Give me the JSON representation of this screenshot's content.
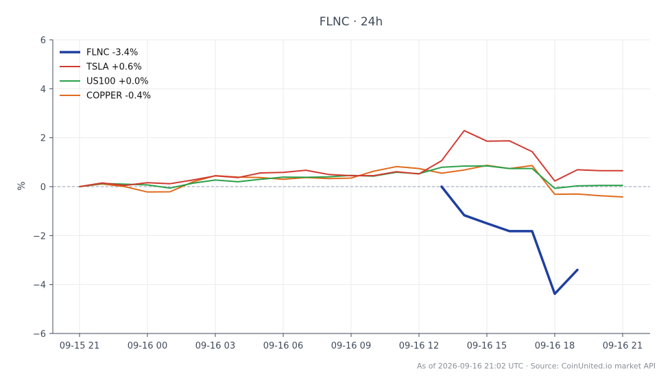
{
  "chart_data": {
    "type": "line",
    "title": "FLNC · 24h",
    "ylabel": "%",
    "xlabel": "",
    "ylim": [
      -6,
      6
    ],
    "yticks": [
      -6,
      -4,
      -2,
      0,
      2,
      4,
      6
    ],
    "ytick_labels": [
      "−6",
      "−4",
      "−2",
      "0",
      "2",
      "4",
      "6"
    ],
    "x_count": 25,
    "xticks": [
      {
        "index": 0,
        "label": "09-15 21"
      },
      {
        "index": 3,
        "label": "09-16 00"
      },
      {
        "index": 6,
        "label": "09-16 03"
      },
      {
        "index": 9,
        "label": "09-16 06"
      },
      {
        "index": 12,
        "label": "09-16 09"
      },
      {
        "index": 15,
        "label": "09-16 12"
      },
      {
        "index": 18,
        "label": "09-16 15"
      },
      {
        "index": 21,
        "label": "09-16 18"
      },
      {
        "index": 24,
        "label": "09-16 21"
      }
    ],
    "grid": true,
    "legend_position": "top-left",
    "zero_line": true,
    "series": [
      {
        "name": "FLNC -3.4%",
        "color": "#1f3fa0",
        "width": 3.5,
        "start_index": 16,
        "values": [
          0.0,
          -1.17,
          -1.5,
          -1.82,
          -1.82,
          -4.38,
          -3.4
        ]
      },
      {
        "name": "TSLA +0.6%",
        "color": "#d03a30",
        "width": 2,
        "start_index": 0,
        "values": [
          0.0,
          0.15,
          0.05,
          0.16,
          0.12,
          0.27,
          0.44,
          0.37,
          0.56,
          0.58,
          0.67,
          0.5,
          0.45,
          0.45,
          0.61,
          0.52,
          1.06,
          2.29,
          1.86,
          1.87,
          1.43,
          0.23,
          0.69,
          0.65,
          0.65
        ]
      },
      {
        "name": "US100 +0.0%",
        "color": "#2aa04a",
        "width": 2,
        "start_index": 0,
        "values": [
          0.0,
          0.13,
          0.1,
          0.07,
          -0.06,
          0.14,
          0.27,
          0.2,
          0.3,
          0.39,
          0.38,
          0.4,
          0.46,
          0.43,
          0.59,
          0.53,
          0.79,
          0.84,
          0.85,
          0.74,
          0.74,
          -0.07,
          0.03,
          0.05,
          0.05
        ]
      },
      {
        "name": "COPPER -0.4%",
        "color": "#e06a1c",
        "width": 2,
        "start_index": 0,
        "values": [
          0.0,
          0.11,
          0.0,
          -0.22,
          -0.21,
          0.19,
          0.45,
          0.39,
          0.37,
          0.3,
          0.37,
          0.33,
          0.35,
          0.63,
          0.82,
          0.74,
          0.55,
          0.68,
          0.87,
          0.74,
          0.86,
          -0.31,
          -0.3,
          -0.37,
          -0.42
        ]
      }
    ],
    "source_text": "As of 2026-09-16 21:02 UTC · Source: CoinUnited.io market API"
  }
}
